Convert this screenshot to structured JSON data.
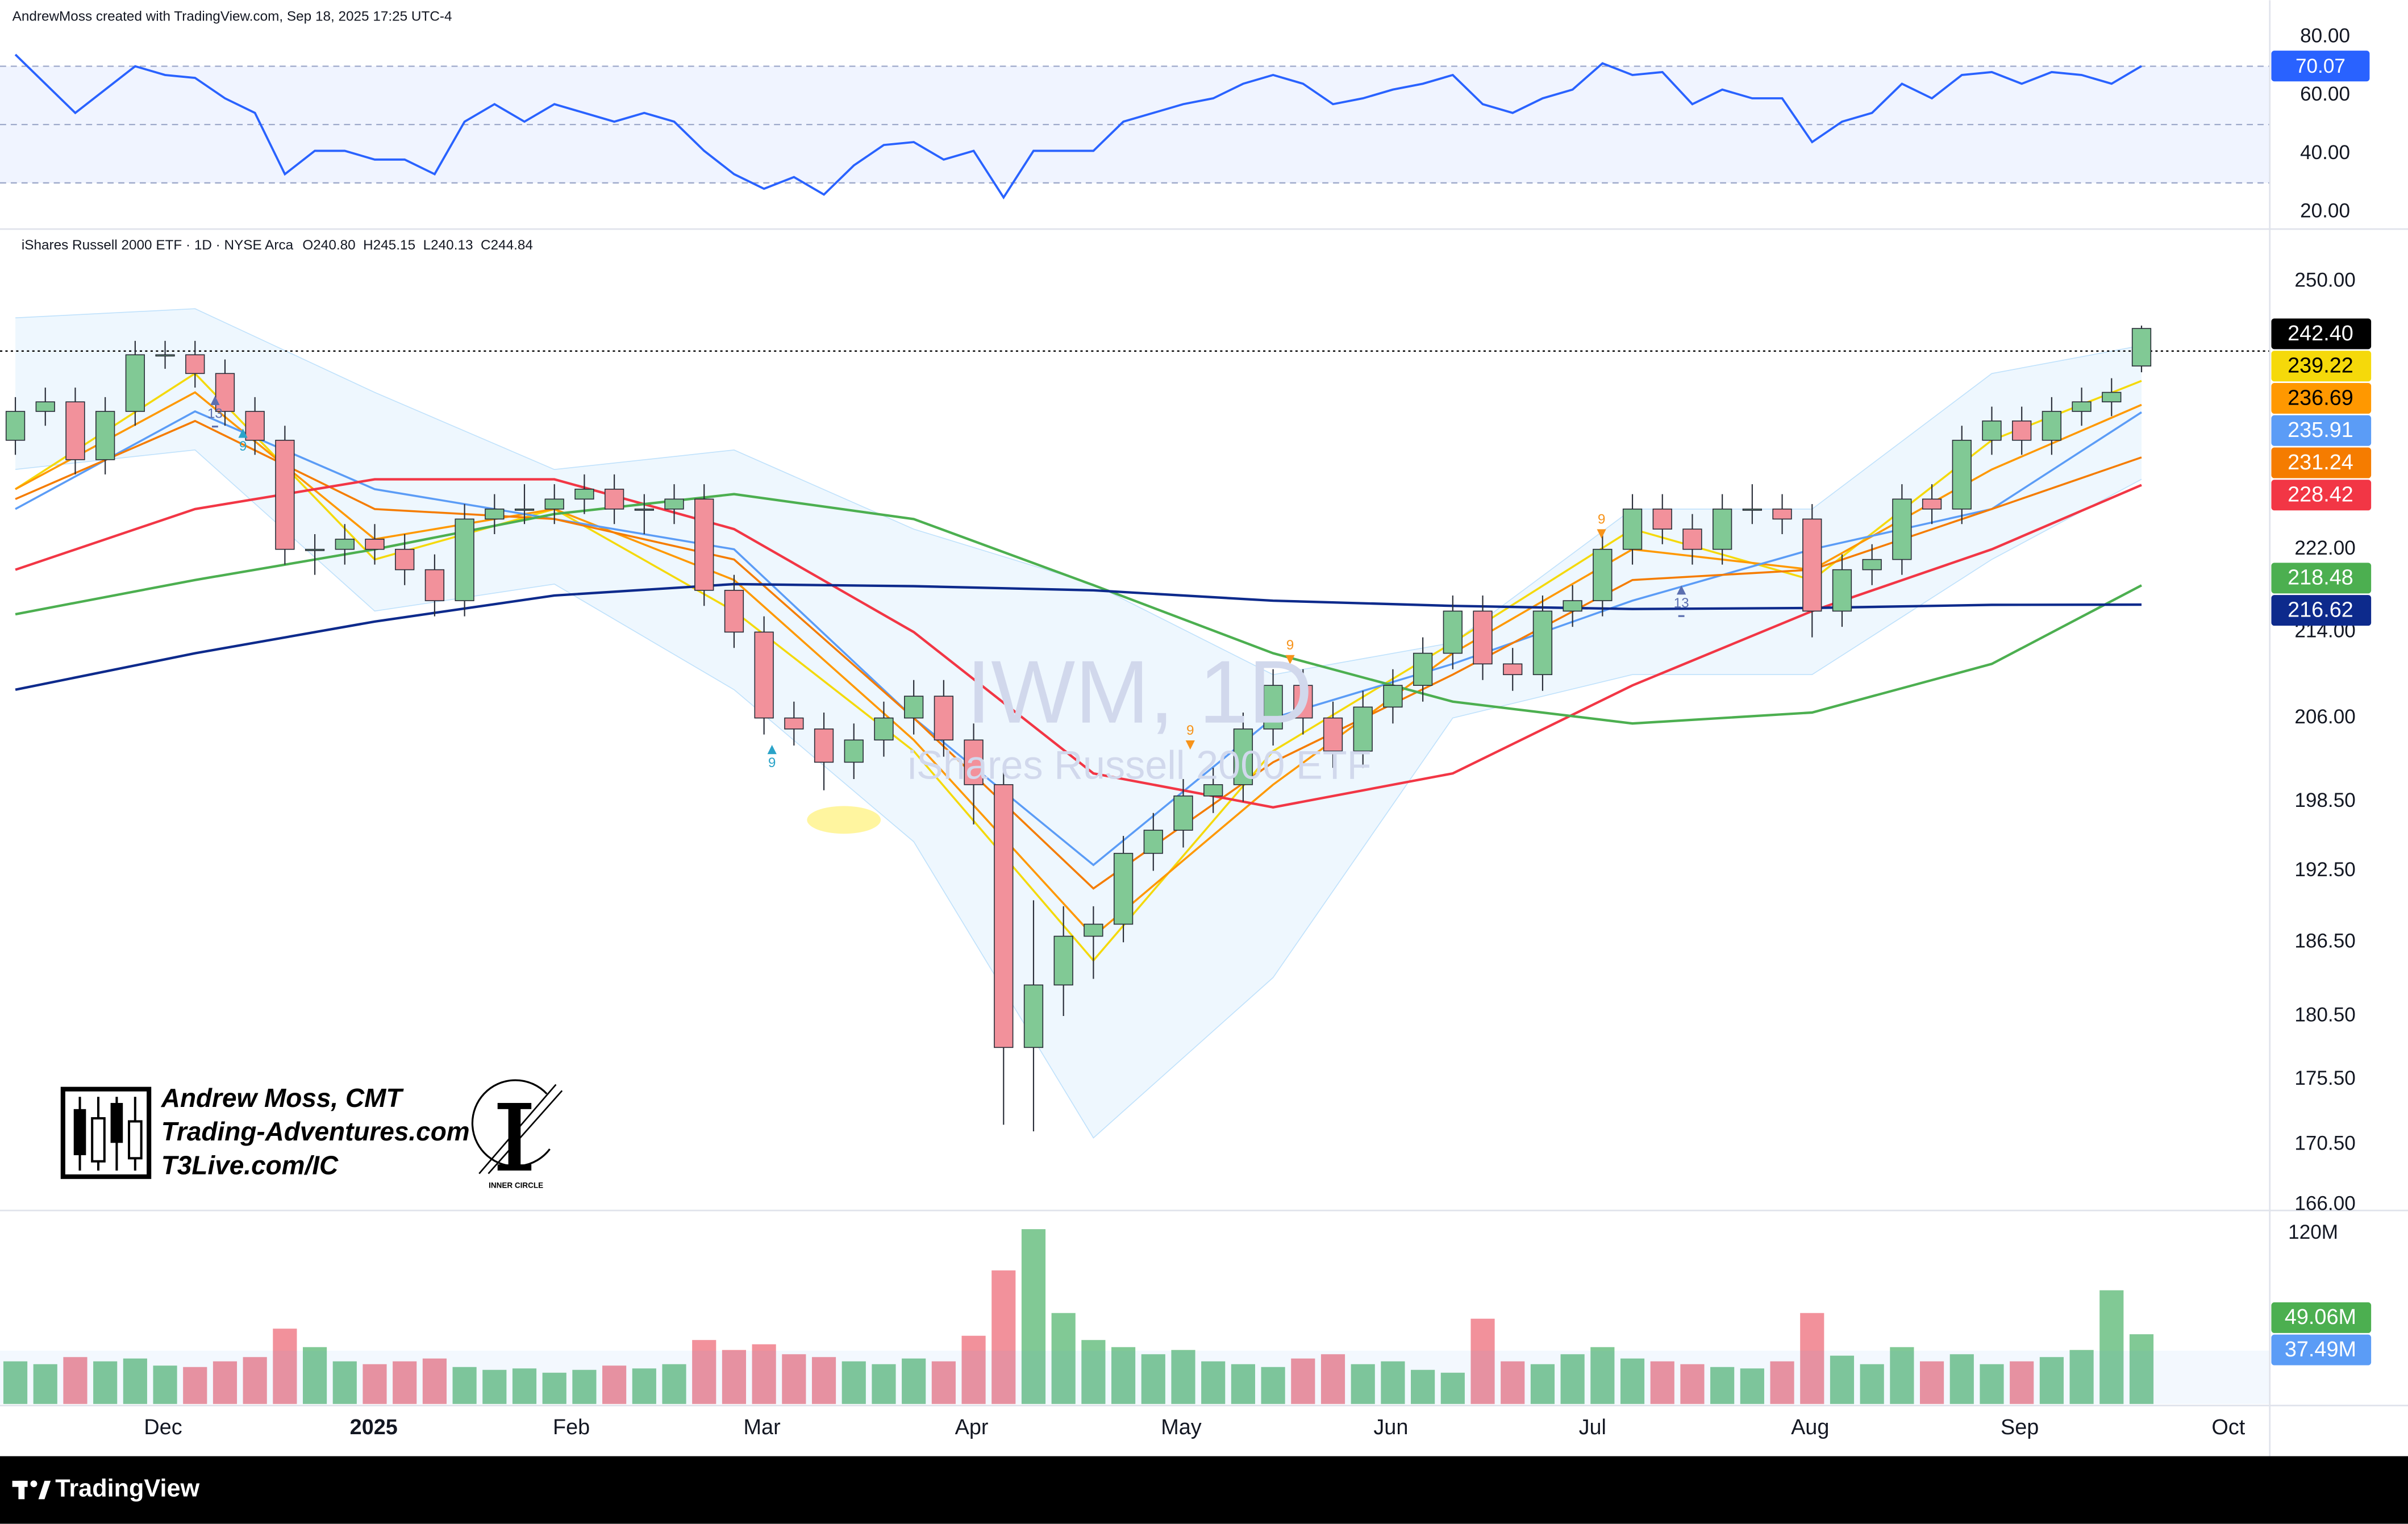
{
  "chart_data": {
    "type": "candlestick",
    "header": "AndrewMoss created with TradingView.com, Sep 18, 2025 17:25 UTC-4",
    "legend_title": "iShares Russell 2000 ETF · 1D · NYSE Arca",
    "legend_ohlc": [
      "O240.80",
      "H245.15",
      "L240.13",
      "C244.84"
    ],
    "watermark": [
      "IWM, 1D",
      "iShares Russell 2000 ETF"
    ],
    "branding": [
      "Andrew Moss, CMT",
      "Trading-Adventures.com",
      "T3Live.com/IC"
    ],
    "logo_text": "INNER CIRCLE",
    "footer": "TradingView",
    "x": [
      0,
      3,
      6,
      9,
      12,
      15,
      18,
      21,
      24,
      27,
      30,
      33,
      36,
      39,
      42,
      45,
      48,
      51,
      54,
      57,
      60,
      63,
      66,
      69,
      72,
      75,
      78,
      81,
      84,
      87,
      90,
      93,
      96,
      99,
      102,
      105,
      108,
      111,
      114,
      117,
      120,
      123,
      126,
      129,
      132,
      135,
      138,
      141,
      144,
      147,
      150,
      153,
      156,
      159,
      162,
      165,
      168,
      171,
      174,
      177,
      180,
      183,
      186,
      189,
      192,
      195,
      198,
      201,
      204,
      207,
      210,
      213
    ],
    "xlim": [
      -1.54,
      225.85
    ],
    "xticks": [
      {
        "value": 14.8,
        "label": "Dec"
      },
      {
        "value": 35.9,
        "label": "2025"
      },
      {
        "value": 55.7,
        "label": "Feb"
      },
      {
        "value": 74.8,
        "label": "Mar"
      },
      {
        "value": 95.8,
        "label": "Apr"
      },
      {
        "value": 116.8,
        "label": "May"
      },
      {
        "value": 137.8,
        "label": "Jun"
      },
      {
        "value": 158,
        "label": "Jul"
      },
      {
        "value": 179.8,
        "label": "Aug"
      },
      {
        "value": 200.8,
        "label": "Sep"
      },
      {
        "value": 221.7,
        "label": "Oct"
      }
    ],
    "ylim": [
      165.7,
      255.7
    ],
    "log_y": true,
    "yticks": [
      {
        "value": 250,
        "label": "250.00"
      },
      {
        "value": 222,
        "label": "222.00"
      },
      {
        "value": 214,
        "label": "214.00"
      },
      {
        "value": 206,
        "label": "206.00"
      },
      {
        "value": 198.5,
        "label": "198.50"
      },
      {
        "value": 192.5,
        "label": "192.50"
      },
      {
        "value": 186.5,
        "label": "186.50"
      },
      {
        "value": 180.5,
        "label": "180.50"
      },
      {
        "value": 175.5,
        "label": "175.50"
      },
      {
        "value": 170.5,
        "label": "170.50"
      },
      {
        "value": 166,
        "label": "166.00"
      }
    ],
    "open": [
      233,
      236,
      237,
      231,
      236,
      242,
      242,
      240,
      236,
      233,
      222,
      222,
      223,
      222,
      220,
      217,
      225,
      226,
      226,
      227,
      228,
      226,
      226,
      227,
      218,
      214,
      206,
      205,
      202,
      204,
      206,
      208,
      204,
      200,
      178,
      183,
      187,
      188,
      194,
      196,
      199,
      200,
      205,
      209,
      206,
      203,
      207,
      209,
      212,
      216,
      211,
      210,
      216,
      217,
      222,
      226,
      224,
      222,
      226,
      226,
      225,
      216,
      220,
      221,
      227,
      226,
      233,
      235,
      233,
      236,
      237,
      240.8
    ],
    "high": [
      237.5,
      238.5,
      238.5,
      237.5,
      243.5,
      243.5,
      243.5,
      241.5,
      237.5,
      234.5,
      223.5,
      224.5,
      224.5,
      223.5,
      221.5,
      226.5,
      227.5,
      228.5,
      228.5,
      229.5,
      229.5,
      227.5,
      228.5,
      228.5,
      219.5,
      215.5,
      207.5,
      206.5,
      205.5,
      207.5,
      209.5,
      209.5,
      205.5,
      201.5,
      190,
      189.5,
      189.5,
      195.5,
      197.5,
      200.5,
      201.5,
      206.5,
      210.5,
      210.5,
      207.5,
      208.5,
      210.5,
      213.5,
      217.5,
      217.5,
      212.5,
      217.5,
      218.5,
      223.5,
      227.5,
      227.5,
      225.5,
      227.5,
      228.5,
      227.5,
      226.5,
      221.5,
      222.5,
      228.5,
      228.5,
      234.5,
      236.5,
      236.5,
      237.5,
      238.5,
      239.5,
      245.15
    ],
    "low": [
      231.5,
      234.5,
      229.5,
      229.5,
      234.5,
      240.5,
      238.5,
      234.5,
      231.5,
      220.5,
      219.5,
      220.5,
      220.5,
      218.5,
      215.5,
      215.5,
      223.5,
      224.5,
      224.5,
      225.5,
      224.5,
      223.5,
      224.5,
      216.5,
      212.5,
      204.5,
      203.5,
      199.5,
      200.5,
      202.5,
      204.5,
      202.5,
      196.5,
      172,
      171.5,
      180.5,
      183.5,
      186.5,
      192.5,
      194.5,
      197.5,
      198.5,
      203.5,
      204.5,
      201.5,
      201.5,
      205.5,
      207.5,
      210.5,
      209.5,
      208.5,
      208.5,
      214.5,
      215.5,
      220.5,
      222.5,
      220.5,
      220.5,
      224.5,
      223.5,
      213.5,
      214.5,
      218.5,
      219.5,
      224.5,
      224.5,
      231.5,
      231.5,
      231.5,
      234.5,
      235.5,
      240.13
    ],
    "close": [
      236,
      237,
      231,
      236,
      242,
      242,
      240,
      236,
      233,
      222,
      222,
      223,
      222,
      220,
      217,
      225,
      226,
      226,
      227,
      228,
      226,
      226,
      227,
      218,
      214,
      206,
      205,
      202,
      204,
      206,
      208,
      204,
      200,
      178,
      183,
      187,
      188,
      194,
      196,
      199,
      200,
      205,
      209,
      206,
      203,
      207,
      209,
      212,
      216,
      211,
      210,
      216,
      217,
      222,
      226,
      224,
      222,
      226,
      226,
      225,
      216,
      220,
      221,
      227,
      226,
      233,
      235,
      233,
      236,
      237,
      238,
      244.84
    ],
    "up_color": "#81c995",
    "down_color": "#f2919b",
    "level": {
      "value": 242.4,
      "label": "242.40",
      "color": "#000000"
    },
    "ma_x": [
      0,
      18,
      36,
      54,
      72,
      90,
      108,
      126,
      144,
      162,
      180,
      198,
      213
    ],
    "band": {
      "upper": [
        246,
        247,
        238,
        230,
        232,
        224,
        218.6,
        210,
        213,
        226,
        226,
        240,
        243
      ],
      "lower": [
        230,
        232,
        216,
        218.6,
        208.6,
        195,
        171,
        183.6,
        206,
        210,
        210,
        221,
        229
      ],
      "color": "#2196f3"
    },
    "averages": [
      {
        "color": "#f5d90a",
        "values": [
          228,
          240,
          221,
          226,
          216,
          203,
          185,
          203,
          213,
          224,
          219,
          233,
          239.22
        ]
      },
      {
        "color": "#ff9800",
        "values": [
          228,
          238,
          223,
          226,
          219,
          204,
          187,
          200,
          212,
          222,
          220,
          230,
          236.69
        ]
      },
      {
        "color": "#5b9cf6",
        "values": [
          226,
          236,
          228,
          225,
          222,
          206,
          193,
          206,
          211,
          217,
          222,
          226,
          235.91
        ]
      },
      {
        "color": "#f57c00",
        "values": [
          227,
          235,
          226,
          225,
          221,
          206,
          191,
          202,
          210,
          219,
          220,
          226,
          231.24
        ]
      },
      {
        "color": "#f23645",
        "values": [
          220,
          226,
          229,
          229,
          224,
          214,
          201,
          198,
          201,
          209,
          216,
          222,
          228.42
        ]
      },
      {
        "color": "#4caf50",
        "values": [
          215.7,
          219,
          222,
          225.5,
          227.5,
          225,
          218.5,
          212,
          207.5,
          205.5,
          206.5,
          211,
          218.48
        ]
      },
      {
        "color": "#0d2a8c",
        "values": [
          208.6,
          212,
          215,
          217.5,
          218.6,
          218.4,
          218,
          217,
          216.5,
          216.2,
          216.3,
          216.6,
          216.62
        ]
      }
    ],
    "markers": [
      {
        "x": 20,
        "y": 235.7,
        "text": "13",
        "color": "#5b6fb0",
        "direction": "up"
      },
      {
        "x": 22.8,
        "y": 232.3,
        "text": "9",
        "color": "#2aa3c8",
        "direction": "up"
      },
      {
        "x": 75.8,
        "y": 201.9,
        "text": "9",
        "color": "#2aa3c8",
        "direction": "up"
      },
      {
        "x": 117.7,
        "y": 204.8,
        "text": "9",
        "color": "#f7931a",
        "direction": "down"
      },
      {
        "x": 127.7,
        "y": 212.7,
        "text": "9",
        "color": "#f7931a",
        "direction": "down"
      },
      {
        "x": 158.9,
        "y": 224.9,
        "text": "9",
        "color": "#f7931a",
        "direction": "down"
      },
      {
        "x": 166.9,
        "y": 216.7,
        "text": "13",
        "color": "#5b6fb0",
        "direction": "up"
      }
    ],
    "highlight": {
      "x": 83,
      "y": 196.9,
      "color": "#fff176"
    },
    "rsi": {
      "values": [
        74,
        64,
        54,
        62,
        70,
        67,
        66,
        59,
        54,
        33,
        41,
        41,
        38,
        38,
        33,
        51,
        57,
        51,
        57,
        54,
        51,
        54,
        51,
        41,
        33,
        28,
        32,
        26,
        36,
        43,
        44,
        38,
        41,
        25,
        41,
        41,
        41,
        51,
        54,
        57,
        59,
        64,
        67,
        64,
        57,
        59,
        62,
        64,
        67,
        57,
        54,
        59,
        62,
        71,
        67,
        68,
        57,
        62,
        59,
        59,
        44,
        51,
        54,
        64,
        59,
        67,
        68,
        64,
        68,
        67,
        64,
        70.07
      ],
      "ylim": [
        14.7,
        82.1
      ],
      "yticks": [
        {
          "value": 80,
          "label": "80.00"
        },
        {
          "value": 60,
          "label": "60.00"
        },
        {
          "value": 40,
          "label": "40.00"
        },
        {
          "value": 20,
          "label": "20.00"
        }
      ],
      "levels": [
        70,
        50,
        30
      ],
      "color": "#2962ff"
    },
    "volume": {
      "values": [
        30,
        28,
        33,
        30,
        32,
        27,
        26,
        30,
        33,
        53,
        40,
        30,
        28,
        30,
        32,
        26,
        24,
        25,
        22,
        24,
        27,
        25,
        28,
        45,
        38,
        42,
        35,
        33,
        30,
        28,
        32,
        30,
        48,
        94,
        123,
        64,
        45,
        40,
        35,
        38,
        30,
        28,
        26,
        32,
        35,
        28,
        30,
        24,
        22,
        60,
        30,
        28,
        35,
        40,
        32,
        30,
        28,
        26,
        25,
        30,
        64,
        34,
        28,
        40,
        30,
        35,
        28,
        30,
        33,
        38,
        80,
        49.06
      ],
      "ylim": [
        0,
        134
      ],
      "yticks": [
        {
          "value": 120,
          "label": "120M"
        }
      ],
      "last_label": "49.06M",
      "ma": 37.49,
      "ma_label": "37.49M",
      "ma_color": "#5b9cf6"
    }
  }
}
